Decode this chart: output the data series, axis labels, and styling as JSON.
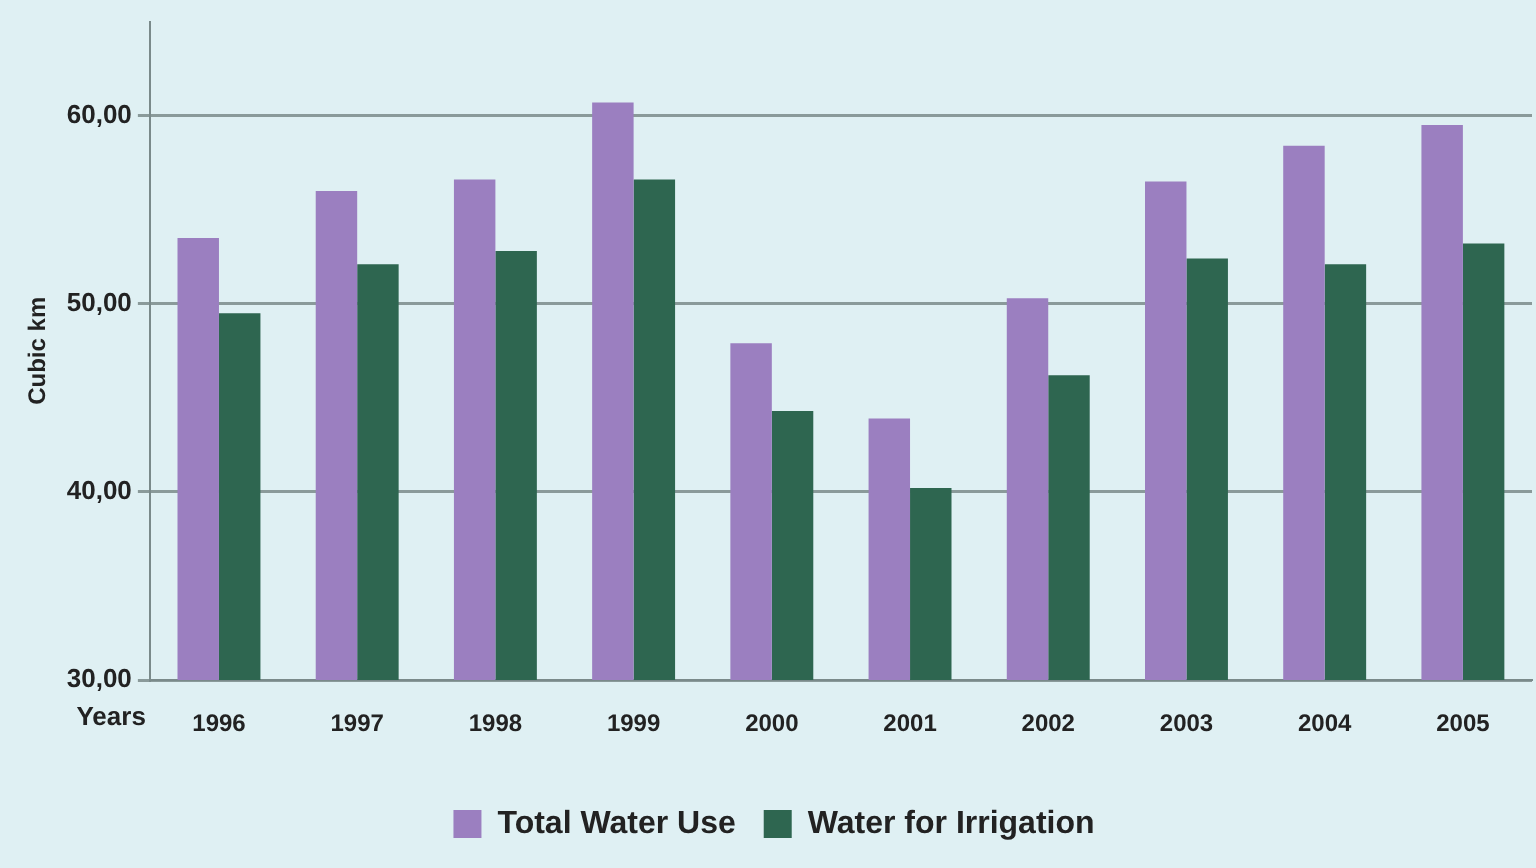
{
  "chart_data": {
    "type": "bar",
    "ylabel": "Cubic km",
    "xlabel": "Years",
    "categories": [
      "1996",
      "1997",
      "1998",
      "1999",
      "2000",
      "2001",
      "2002",
      "2003",
      "2004",
      "2005"
    ],
    "series": [
      {
        "name": "Total Water Use",
        "color": "#9b7fc0",
        "values": [
          53.5,
          56.0,
          56.6,
          60.7,
          47.9,
          43.9,
          50.3,
          56.5,
          58.4,
          59.5
        ]
      },
      {
        "name": "Water for Irrigation",
        "color": "#2e6650",
        "values": [
          49.5,
          52.1,
          52.8,
          56.6,
          44.3,
          40.2,
          46.2,
          52.4,
          52.1,
          53.2
        ]
      }
    ],
    "ylim": [
      30,
      65
    ],
    "yticks": [
      {
        "value": 30,
        "label": "30,00"
      },
      {
        "value": 40,
        "label": "40,00"
      },
      {
        "value": 50,
        "label": "50,00"
      },
      {
        "value": 60,
        "label": "60,00"
      }
    ],
    "grid": "y",
    "legend": "bottom"
  }
}
